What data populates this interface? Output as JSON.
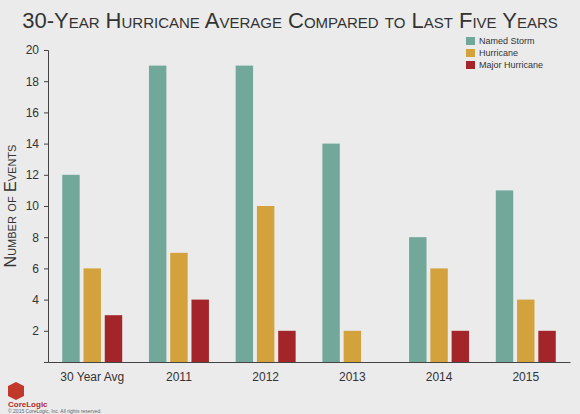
{
  "chart_data": {
    "type": "bar",
    "title": "30-Year Hurricane Average Compared to Last Five Years",
    "y_label": "Number of Events",
    "annotations": [
      "CoreLogic",
      "© 2015 CoreLogic, Inc. All rights reserved."
    ],
    "categories": [
      "30 Year Avg",
      "2011",
      "2012",
      "2013",
      "2014",
      "2015"
    ],
    "series": [
      {
        "name": "Named Storm",
        "color": "#72a89a",
        "values": [
          12,
          19,
          19,
          14,
          8,
          11
        ]
      },
      {
        "name": "Hurricane",
        "color": "#d4a23c",
        "values": [
          6,
          7,
          10,
          2,
          6,
          4
        ]
      },
      {
        "name": "Major Hurricane",
        "color": "#a3252a",
        "values": [
          3,
          4,
          2,
          0,
          2,
          2
        ]
      }
    ],
    "ylim": [
      0,
      20
    ],
    "yticks": [
      2,
      4,
      6,
      8,
      10,
      12,
      14,
      16,
      18,
      20
    ],
    "grid": false,
    "legend": "top-right",
    "data_labels": false
  }
}
